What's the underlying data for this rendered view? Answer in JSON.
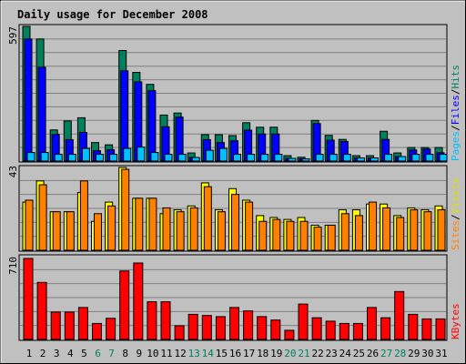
{
  "chart_data": {
    "type": "bar",
    "title": "Daily usage for December 2008",
    "days": [
      "1",
      "2",
      "3",
      "4",
      "5",
      "6",
      "7",
      "8",
      "9",
      "10",
      "11",
      "12",
      "13",
      "14",
      "15",
      "16",
      "17",
      "18",
      "19",
      "20",
      "21",
      "22",
      "23",
      "24",
      "25",
      "26",
      "27",
      "28",
      "29",
      "30",
      "31"
    ],
    "weekend_days": [
      "6",
      "7",
      "13",
      "14",
      "20",
      "21",
      "27",
      "28"
    ],
    "colors": {
      "background": "#c0c0c0",
      "title": "#0000b0",
      "weekday_tick": "#000000",
      "weekend_tick": "#00805c",
      "hits": "#00805c",
      "files": "#0000ff",
      "pages": "#00c0ff",
      "visits": "#ffff00",
      "sites": "#ff8000",
      "kbytes": "#ff0000",
      "separator_slash": "#000000"
    },
    "top_panel": {
      "ymax_label": "597",
      "ymax": 597,
      "series": [
        {
          "name": "Hits",
          "values": [
            597,
            541,
            138,
            178,
            192,
            82,
            72,
            490,
            393,
            340,
            204,
            213,
            36,
            117,
            117,
            113,
            170,
            150,
            150,
            24,
            17,
            180,
            114,
            96,
            24,
            24,
            132,
            36,
            60,
            60,
            60
          ]
        },
        {
          "name": "Files",
          "values": [
            541,
            416,
            118,
            95,
            127,
            46,
            50,
            400,
            351,
            312,
            152,
            195,
            16,
            95,
            82,
            90,
            137,
            120,
            120,
            12,
            10,
            166,
            93,
            87,
            14,
            14,
            96,
            20,
            49,
            53,
            37
          ]
        },
        {
          "name": "Pages",
          "values": [
            38,
            38,
            30,
            30,
            56,
            30,
            30,
            56,
            62,
            38,
            30,
            30,
            16,
            48,
            56,
            30,
            30,
            30,
            30,
            12,
            10,
            30,
            30,
            30,
            14,
            14,
            30,
            20,
            30,
            30,
            30
          ]
        }
      ],
      "labels": {
        "pages": "Pages",
        "files": "Files",
        "hits": "Hits",
        "slash": "/"
      }
    },
    "middle_panel": {
      "ymax_label": "43",
      "ymax": 43,
      "series": [
        {
          "name": "Visits",
          "values": [
            25,
            36,
            20,
            20,
            30,
            15,
            25,
            43,
            27,
            27,
            19,
            21,
            23,
            35,
            21,
            32,
            26,
            18,
            17,
            16,
            17,
            13,
            13,
            21,
            21,
            24,
            24,
            18,
            22,
            21,
            23
          ]
        },
        {
          "name": "Sites",
          "values": [
            26,
            34,
            20,
            20,
            36,
            19,
            23,
            42,
            27,
            27,
            22,
            20,
            22,
            33,
            20,
            29,
            25,
            15,
            16,
            15,
            15,
            12,
            13,
            19,
            18,
            25,
            22,
            17,
            21,
            20,
            21
          ]
        }
      ],
      "labels": {
        "sites": "Sites",
        "visits": "Visits",
        "slash": "/"
      }
    },
    "bottom_panel": {
      "ymax_label": "710",
      "ymax": 710,
      "series": [
        {
          "name": "KBytes",
          "values": [
            710,
            500,
            240,
            240,
            280,
            140,
            185,
            600,
            670,
            330,
            330,
            120,
            220,
            210,
            200,
            280,
            250,
            200,
            170,
            80,
            310,
            190,
            160,
            140,
            140,
            280,
            190,
            420,
            220,
            180,
            180
          ]
        }
      ],
      "labels": {
        "kbytes": "KBytes"
      }
    }
  }
}
